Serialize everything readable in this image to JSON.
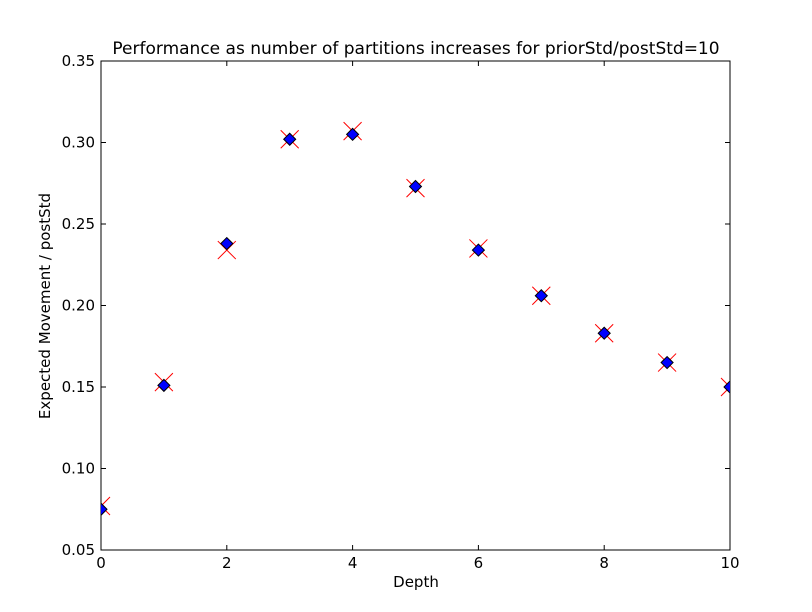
{
  "chart_data": {
    "type": "scatter",
    "title": "Performance as number of partitions increases for priorStd/postStd=10",
    "xlabel": "Depth",
    "ylabel": "Expected Movement / postStd",
    "xlim": [
      0,
      10
    ],
    "ylim": [
      0.05,
      0.35
    ],
    "xticks": [
      0,
      2,
      4,
      6,
      8,
      10
    ],
    "xtick_labels": [
      "0",
      "2",
      "4",
      "6",
      "8",
      "10"
    ],
    "yticks": [
      0.05,
      0.1,
      0.15,
      0.2,
      0.25,
      0.3,
      0.35
    ],
    "ytick_labels": [
      "0.05",
      "0.10",
      "0.15",
      "0.20",
      "0.25",
      "0.30",
      "0.35"
    ],
    "grid": false,
    "series": [
      {
        "marker": "x",
        "color": "#ff0000",
        "x": [
          0,
          1,
          2,
          3,
          4,
          5,
          6,
          7,
          8,
          9,
          10
        ],
        "y": [
          0.077,
          0.153,
          0.234,
          0.302,
          0.307,
          0.272,
          0.235,
          0.206,
          0.183,
          0.165,
          0.15
        ]
      },
      {
        "marker": "diamond",
        "color": "#0000ff",
        "x": [
          0,
          1,
          2,
          3,
          4,
          5,
          6,
          7,
          8,
          9,
          10
        ],
        "y": [
          0.075,
          0.151,
          0.238,
          0.302,
          0.305,
          0.273,
          0.234,
          0.206,
          0.183,
          0.165,
          0.15
        ]
      }
    ]
  }
}
